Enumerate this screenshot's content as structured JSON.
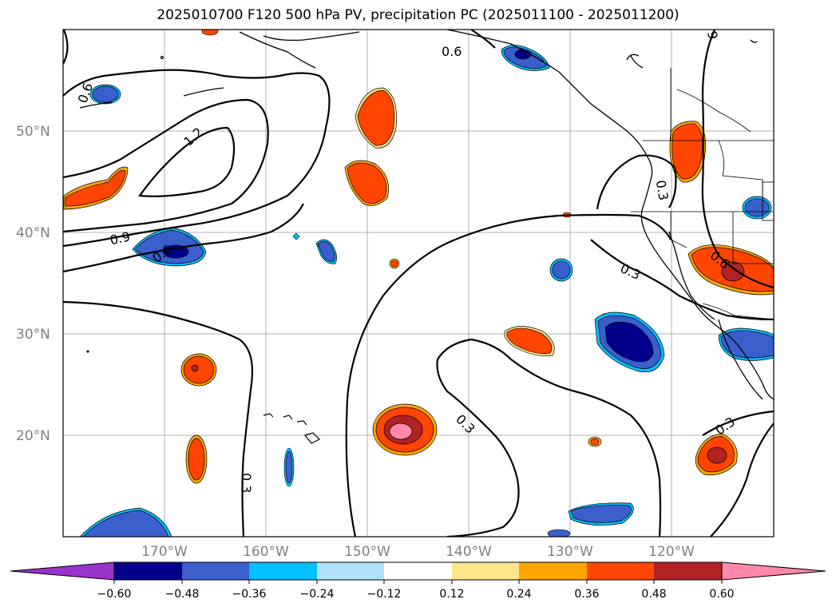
{
  "title": "2025010700 F120 500 hPa PV, precipitation PC (2025011100 - 2025011200)",
  "lat_labels": [
    "50°N",
    "40°N",
    "30°N",
    "20°N"
  ],
  "lon_labels": [
    "170°W",
    "160°W",
    "150°W",
    "140°W",
    "130°W",
    "120°W"
  ],
  "contour_labels": [
    "0.6",
    "0.6",
    "1.2",
    "0.9",
    "0.6",
    "0.3",
    "0.3",
    "0.3",
    "0.3",
    "0.6",
    "0.3",
    "9"
  ],
  "colorbar": {
    "tick_labels": [
      "−0.60",
      "−0.48",
      "−0.36",
      "−0.24",
      "−0.12",
      "0.12",
      "0.24",
      "0.36",
      "0.48",
      "0.60"
    ],
    "colors": [
      "#9933cc",
      "#00008b",
      "#3a5fcd",
      "#00bfff",
      "#afe1fa",
      "#ffffff",
      "#fde68a",
      "#ffa500",
      "#ff4500",
      "#b22222",
      "#ff88aa"
    ]
  }
}
